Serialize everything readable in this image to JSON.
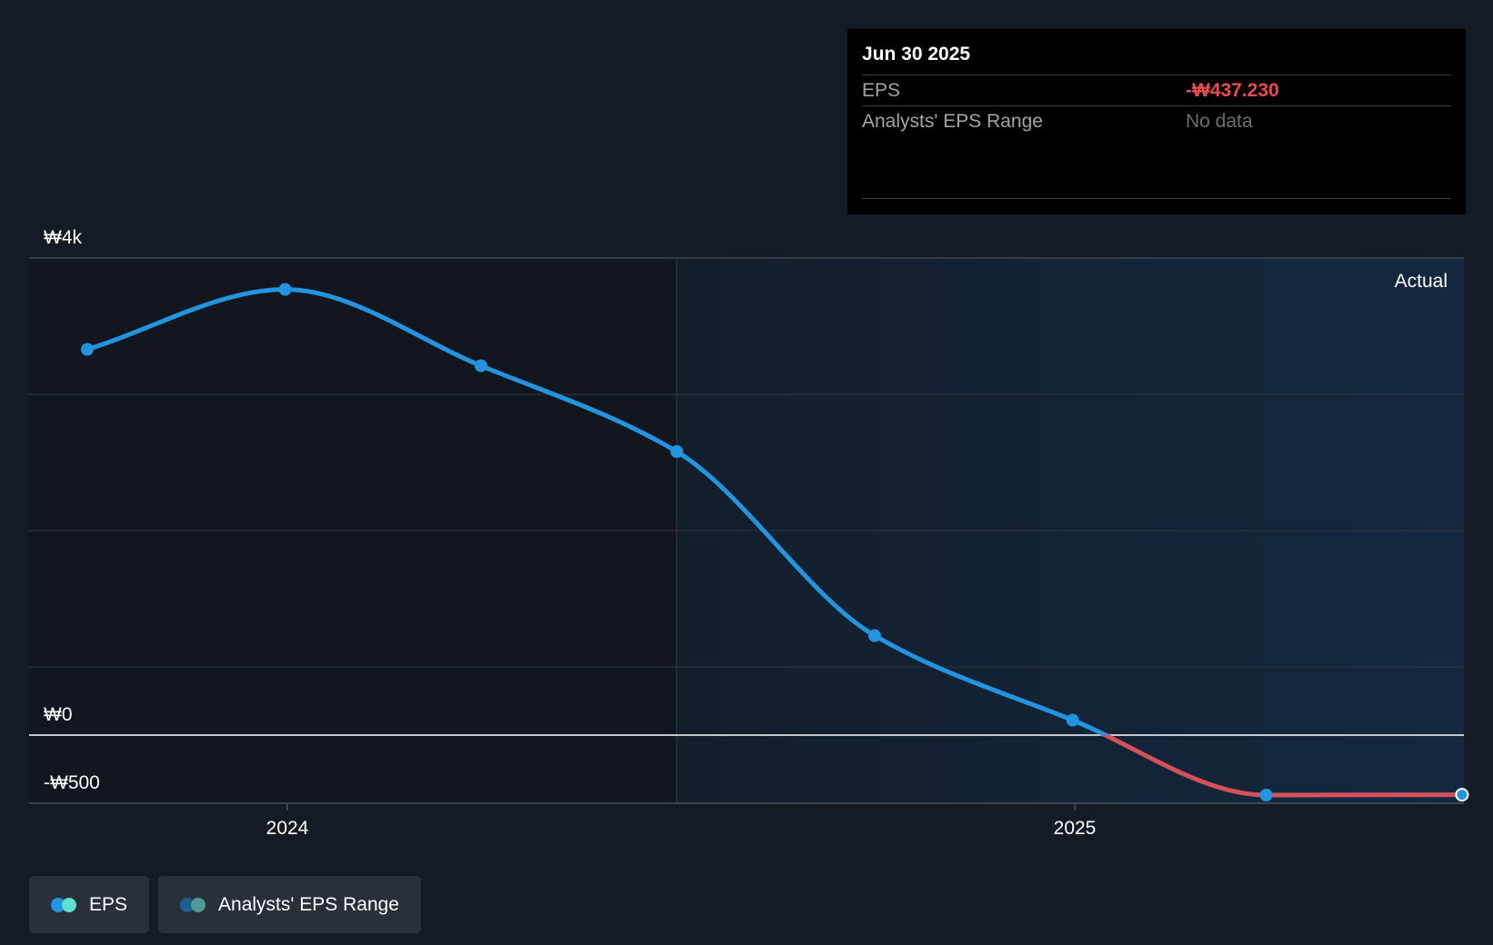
{
  "chart_data": {
    "type": "line",
    "y_axis": {
      "ticks": [
        {
          "value": 4000,
          "label": "₩4k"
        },
        {
          "value": 0,
          "label": "₩0"
        },
        {
          "value": -500,
          "label": "-₩500"
        }
      ],
      "ylim": [
        -500,
        3500
      ],
      "grid": true
    },
    "x_axis": {
      "ticks": [
        {
          "label": "2024",
          "date": "2024-01-01"
        },
        {
          "label": "2025",
          "date": "2025-01-01"
        }
      ]
    },
    "series": [
      {
        "name": "EPS",
        "color": "#2394df",
        "negative_color": "#d4505a",
        "points": [
          {
            "date": "2023-09-30",
            "value": 2830
          },
          {
            "date": "2023-12-31",
            "value": 3270
          },
          {
            "date": "2024-03-31",
            "value": 2710
          },
          {
            "date": "2024-06-30",
            "value": 2080
          },
          {
            "date": "2024-09-30",
            "value": 730
          },
          {
            "date": "2024-12-31",
            "value": 110
          },
          {
            "date": "2025-03-31",
            "value": -440
          },
          {
            "date": "2025-06-30",
            "value": -437.23
          }
        ]
      }
    ],
    "region_label": "Actual",
    "region_start": "2024-06-30",
    "region_end": "2025-06-30"
  },
  "tooltip": {
    "date": "Jun 30 2025",
    "eps_label": "EPS",
    "eps_value": "-₩437.230",
    "range_label": "Analysts' EPS Range",
    "range_value": "No data"
  },
  "legend": [
    {
      "label": "EPS",
      "colors": [
        "#2394df",
        "#5fe0d0"
      ]
    },
    {
      "label": "Analysts' EPS Range",
      "colors": [
        "#1f5f8f",
        "#4e9a94"
      ]
    }
  ]
}
